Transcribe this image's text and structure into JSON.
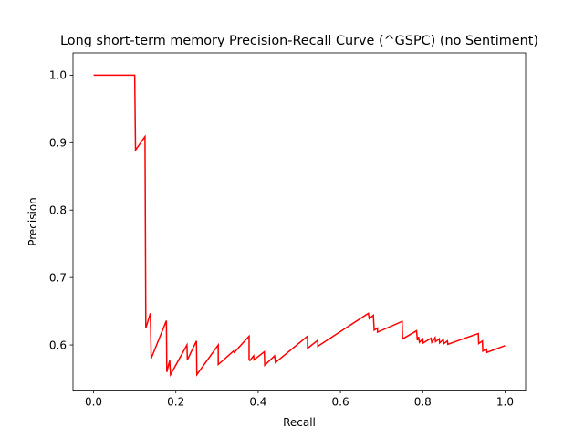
{
  "chart_data": {
    "type": "line",
    "title": "Long short-term memory Precision-Recall Curve (^GSPC) (no Sentiment)",
    "xlabel": "Recall",
    "ylabel": "Precision",
    "xlim": [
      -0.05,
      1.05
    ],
    "ylim": [
      0.533,
      1.033
    ],
    "xticks": [
      "0.0",
      "0.2",
      "0.4",
      "0.6",
      "0.8",
      "1.0"
    ],
    "yticks": [
      "0.6",
      "0.7",
      "0.8",
      "0.9",
      "1.0"
    ],
    "grid": false,
    "legend": "none",
    "series": [
      {
        "color": "#ff0000",
        "x": [
          0.0,
          0.1,
          0.102,
          0.125,
          0.127,
          0.127,
          0.138,
          0.14,
          0.177,
          0.178,
          0.185,
          0.187,
          0.227,
          0.228,
          0.25,
          0.251,
          0.303,
          0.303,
          0.34,
          0.342,
          0.378,
          0.378,
          0.38,
          0.389,
          0.39,
          0.415,
          0.416,
          0.44,
          0.442,
          0.52,
          0.52,
          0.545,
          0.545,
          0.668,
          0.67,
          0.68,
          0.682,
          0.69,
          0.69,
          0.75,
          0.751,
          0.785,
          0.787,
          0.79,
          0.792,
          0.8,
          0.801,
          0.82,
          0.822,
          0.83,
          0.831,
          0.84,
          0.841,
          0.85,
          0.851,
          0.86,
          0.861,
          0.935,
          0.936,
          0.945,
          0.946,
          0.955,
          0.956,
          1.0
        ],
        "y": [
          1.0,
          1.0,
          0.889,
          0.909,
          0.625,
          0.625,
          0.647,
          0.58,
          0.636,
          0.56,
          0.577,
          0.556,
          0.6,
          0.578,
          0.606,
          0.556,
          0.6,
          0.571,
          0.591,
          0.589,
          0.613,
          0.578,
          0.577,
          0.584,
          0.578,
          0.59,
          0.57,
          0.584,
          0.574,
          0.613,
          0.595,
          0.607,
          0.598,
          0.647,
          0.639,
          0.644,
          0.622,
          0.625,
          0.619,
          0.635,
          0.609,
          0.621,
          0.607,
          0.612,
          0.604,
          0.609,
          0.603,
          0.61,
          0.604,
          0.611,
          0.605,
          0.609,
          0.603,
          0.608,
          0.602,
          0.606,
          0.601,
          0.617,
          0.602,
          0.606,
          0.591,
          0.594,
          0.589,
          0.599
        ]
      }
    ]
  }
}
